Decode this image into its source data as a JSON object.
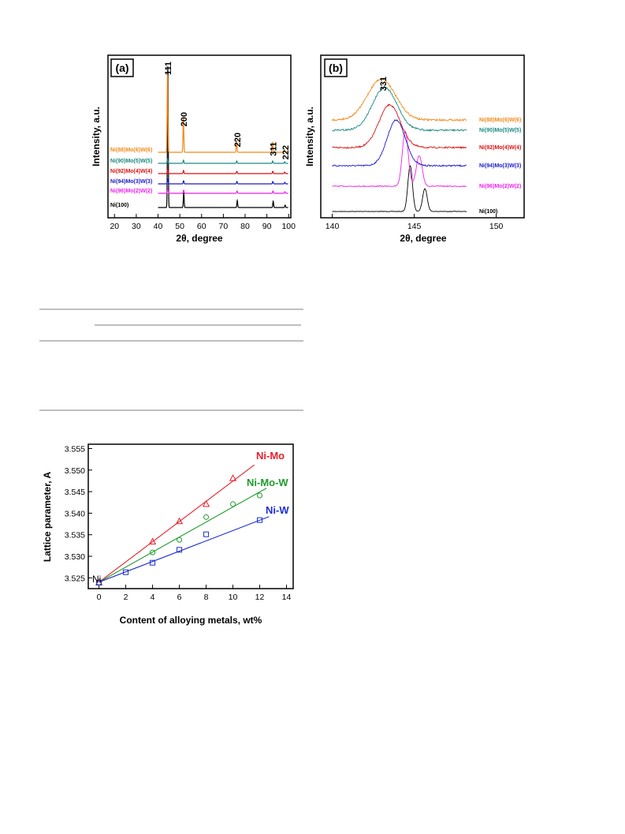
{
  "chart_data": [
    {
      "type": "line",
      "panel": "(a)",
      "xlabel": "2θ, degree",
      "ylabel": "Intensity, a.u.",
      "xlim": [
        17,
        101
      ],
      "xticks": [
        20,
        30,
        40,
        50,
        60,
        70,
        80,
        90,
        100
      ],
      "peak_labels": [
        {
          "label": "111",
          "x": 44.5
        },
        {
          "label": "200",
          "x": 51.8
        },
        {
          "label": "220",
          "x": 76.4
        },
        {
          "label": "311",
          "x": 92.9
        },
        {
          "label": "222",
          "x": 98.4
        }
      ],
      "series": [
        {
          "name": "Ni(100)",
          "color": "#000000",
          "peak_positions": [
            44.5,
            51.8,
            76.4,
            92.9,
            98.4
          ],
          "peak_heights": [
            180,
            19,
            9,
            8,
            3
          ]
        },
        {
          "name": "Ni(96)Mo(2)W(2)",
          "color": "#ee22ee",
          "peak_positions": [
            44.45,
            51.75,
            76.3,
            92.8,
            98.3
          ],
          "peak_heights": [
            6,
            4,
            3,
            3,
            2
          ]
        },
        {
          "name": "Ni(94)Mo(3)W(3)",
          "color": "#1a1acc",
          "peak_positions": [
            44.42,
            51.72,
            76.25,
            92.75,
            98.25
          ],
          "peak_heights": [
            6,
            4,
            3,
            3,
            2
          ]
        },
        {
          "name": "Ni(92)Mo(4)W(4)",
          "color": "#dd1111",
          "peak_positions": [
            44.4,
            51.7,
            76.2,
            92.7,
            98.2
          ],
          "peak_heights": [
            6,
            4,
            3,
            3,
            2
          ]
        },
        {
          "name": "Ni(90)Mo(5)W(5)",
          "color": "#1a8a80",
          "peak_positions": [
            44.37,
            51.67,
            76.15,
            92.65,
            98.15
          ],
          "peak_heights": [
            6,
            4,
            3,
            3,
            2
          ]
        },
        {
          "name": "Ni(88)Mo(6)W(6)",
          "color": "#f08a1a",
          "peak_positions": [
            44.35,
            51.65,
            76.1,
            92.6,
            98.1
          ],
          "peak_heights": [
            100,
            45,
            15,
            13,
            3
          ]
        }
      ]
    },
    {
      "type": "line",
      "panel": "(b)",
      "xlabel": "2θ, degree",
      "ylabel": "Intensity, a.u.",
      "xlim": [
        139.3,
        151.7
      ],
      "xticks": [
        140,
        145,
        150
      ],
      "peak_labels": [
        {
          "label": "331",
          "x": 143.1
        }
      ],
      "series": [
        {
          "name": "Ni(100)",
          "color": "#000000",
          "peak_centers": [
            144.75,
            145.65
          ],
          "peak_heights": [
            1.0,
            0.5
          ]
        },
        {
          "name": "Ni(96)Mo(2)W(2)",
          "color": "#ee22ee",
          "peak_centers": [
            144.45,
            145.3
          ],
          "peak_heights": [
            1.0,
            0.55
          ]
        },
        {
          "name": "Ni(94)Mo(3)W(3)",
          "color": "#1a1acc",
          "peak_centers": [
            143.9
          ],
          "peak_heights": [
            1.0
          ]
        },
        {
          "name": "Ni(92)Mo(4)W(4)",
          "color": "#dd1111",
          "peak_centers": [
            143.5
          ],
          "peak_heights": [
            1.0
          ]
        },
        {
          "name": "Ni(90)Mo(5)W(5)",
          "color": "#1a8a80",
          "peak_centers": [
            143.2
          ],
          "peak_heights": [
            1.0
          ]
        },
        {
          "name": "Ni(88)Mo(6)W(6)",
          "color": "#f08a1a",
          "peak_centers": [
            143.0
          ],
          "peak_heights": [
            1.0
          ]
        }
      ]
    },
    {
      "type": "scatter",
      "xlabel": "Content of alloying metals, wt%",
      "ylabel": "Lattice parameter, A",
      "xlim": [
        -0.8,
        14.5
      ],
      "ylim": [
        3.5225,
        3.556
      ],
      "xticks": [
        0,
        2,
        4,
        6,
        8,
        10,
        12,
        14
      ],
      "yticks": [
        3.525,
        3.53,
        3.535,
        3.54,
        3.545,
        3.55,
        3.555
      ],
      "annotation": "Ni",
      "series": [
        {
          "name": "Ni-Mo",
          "color": "#e8202a",
          "marker": "triangle",
          "x": [
            0,
            4,
            6,
            8,
            10
          ],
          "y": [
            3.5239,
            3.5334,
            3.5381,
            3.5421,
            3.5481
          ],
          "fit": {
            "x": [
              0,
              11.6
            ],
            "y": [
              3.524,
              3.5512
            ]
          }
        },
        {
          "name": "Ni-Mo-W",
          "color": "#1f9a2a",
          "marker": "circle",
          "x": [
            0,
            4,
            6,
            8,
            10,
            12
          ],
          "y": [
            3.5239,
            3.5309,
            3.5338,
            3.5391,
            3.5421,
            3.5441
          ],
          "fit": {
            "x": [
              0,
              12.5
            ],
            "y": [
              3.524,
              3.5458
            ]
          }
        },
        {
          "name": "Ni-W",
          "color": "#1c2ed6",
          "marker": "square",
          "x": [
            0,
            2,
            4,
            6,
            8,
            12
          ],
          "y": [
            3.5239,
            3.5263,
            3.5285,
            3.5315,
            3.5351,
            3.5384
          ],
          "fit": {
            "x": [
              0,
              12.7
            ],
            "y": [
              3.524,
              3.5392
            ]
          }
        }
      ]
    }
  ]
}
